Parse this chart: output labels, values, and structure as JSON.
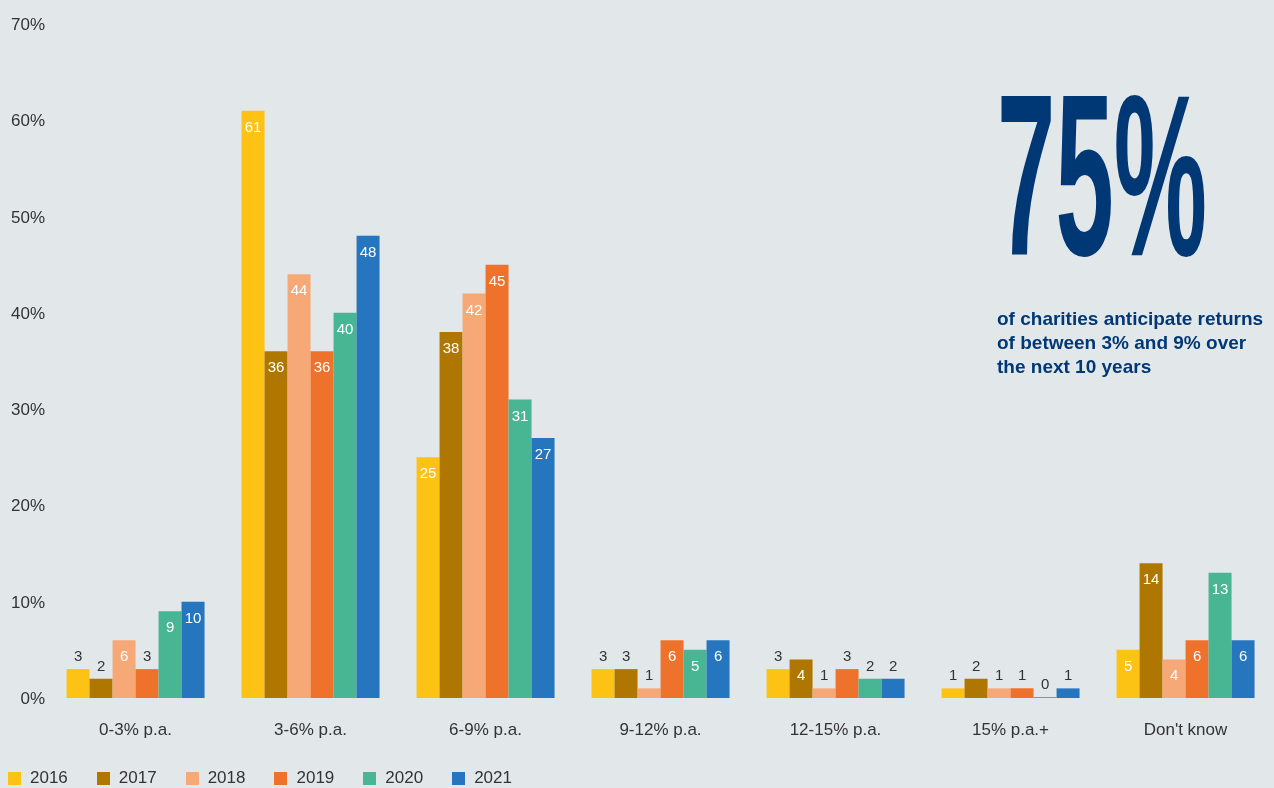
{
  "chart_data": {
    "type": "bar",
    "categories": [
      "0-3% p.a.",
      "3-6% p.a.",
      "6-9% p.a.",
      "9-12% p.a.",
      "12-15% p.a.",
      "15% p.a.+",
      "Don't know"
    ],
    "series": [
      {
        "name": "2016",
        "color": "#fdc314",
        "values": [
          3,
          61,
          25,
          3,
          3,
          1,
          5
        ]
      },
      {
        "name": "2017",
        "color": "#b07700",
        "values": [
          2,
          36,
          38,
          3,
          4,
          2,
          14
        ]
      },
      {
        "name": "2018",
        "color": "#f6a977",
        "values": [
          6,
          44,
          42,
          1,
          1,
          1,
          4
        ]
      },
      {
        "name": "2019",
        "color": "#ee722b",
        "values": [
          3,
          36,
          45,
          6,
          3,
          1,
          6
        ]
      },
      {
        "name": "2020",
        "color": "#49b693",
        "values": [
          9,
          40,
          31,
          5,
          2,
          0,
          13
        ]
      },
      {
        "name": "2021",
        "color": "#2676bf",
        "values": [
          10,
          48,
          27,
          6,
          2,
          1,
          6
        ]
      }
    ],
    "ylim": [
      0,
      70
    ],
    "yticks": [
      {
        "value": 0,
        "label": "0%"
      },
      {
        "value": 10,
        "label": "10%"
      },
      {
        "value": 20,
        "label": "20%"
      },
      {
        "value": 30,
        "label": "30%"
      },
      {
        "value": 40,
        "label": "40%"
      },
      {
        "value": 50,
        "label": "50%"
      },
      {
        "value": 60,
        "label": "60%"
      },
      {
        "value": 70,
        "label": "70%"
      }
    ],
    "legend": "bottom left",
    "data_labels": true,
    "annotations": [
      "75%",
      "of charities anticipate returns of between 3% and 9% over the next 10 years"
    ]
  }
}
